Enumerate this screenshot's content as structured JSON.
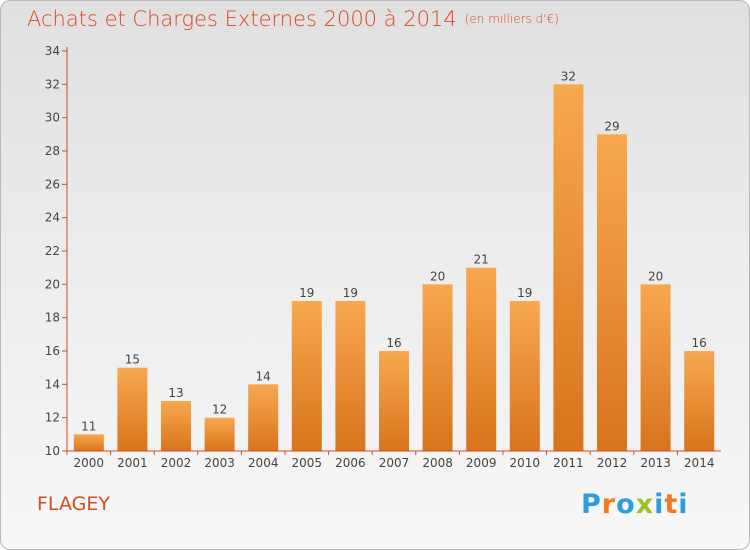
{
  "header": {
    "title": "Achats et Charges Externes 2000 à 2014",
    "unit": "(en milliers d'€)"
  },
  "commune": "FLAGEY",
  "logo": {
    "text": "Proxiti",
    "letters": [
      {
        "ch": "P",
        "color": "#2e9de0"
      },
      {
        "ch": "r",
        "color": "#ee7a23"
      },
      {
        "ch": "o",
        "color": "#2e9de0"
      },
      {
        "ch": "x",
        "color": "#9bc324"
      },
      {
        "ch": "i",
        "color": "#2e9de0"
      },
      {
        "ch": "t",
        "color": "#ee7a23"
      },
      {
        "ch": "i",
        "color": "#2e9de0"
      }
    ]
  },
  "chart_data": {
    "type": "bar",
    "categories": [
      "2000",
      "2001",
      "2002",
      "2003",
      "2004",
      "2005",
      "2006",
      "2007",
      "2008",
      "2009",
      "2010",
      "2011",
      "2012",
      "2013",
      "2014"
    ],
    "values": [
      11,
      15,
      13,
      12,
      14,
      19,
      19,
      16,
      20,
      21,
      19,
      32,
      29,
      20,
      16
    ],
    "ylim": [
      10,
      34
    ],
    "yticks": [
      10,
      12,
      14,
      16,
      18,
      20,
      22,
      24,
      26,
      28,
      30,
      32,
      34
    ],
    "grid": false,
    "colors": {
      "bar_top": "#f8a850",
      "bar_bottom": "#d8741c",
      "axis": "#d94a1f",
      "text": "#444444"
    }
  }
}
